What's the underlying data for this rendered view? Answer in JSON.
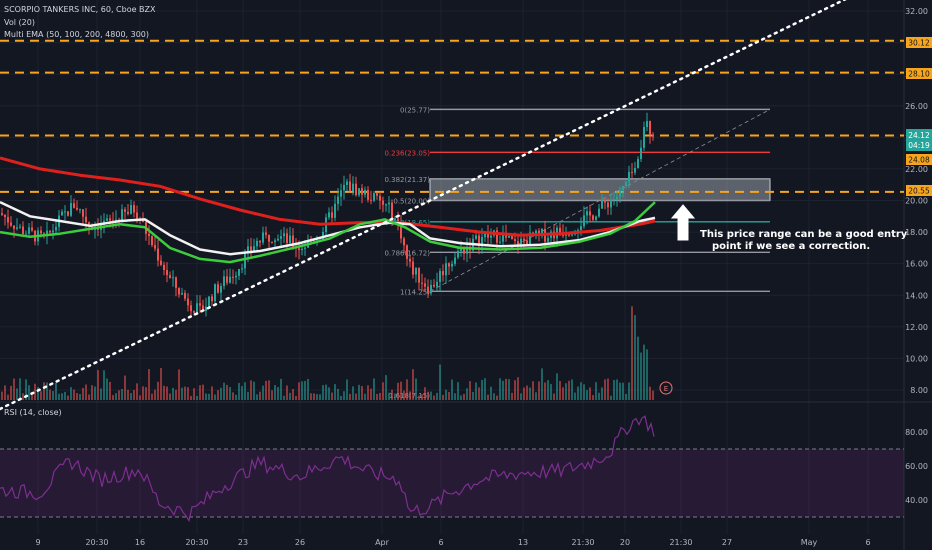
{
  "legend": {
    "line1": "SCORPIO TANKERS INC, 60, Cboe BZX",
    "line2": "Vol (20)",
    "line3": "Multi EMA (50, 100, 200, 4800, 300)",
    "rsi_label": "RSI (14, close)"
  },
  "price_tags": {
    "p3012": "30.12",
    "p2810": "28.10",
    "p2412": "24.12",
    "p0419": "04:19",
    "p2408": "24.08",
    "p2055": "20.55"
  },
  "annotation": {
    "line1": "This price range can be a good entry",
    "line2": "point if we see a correction."
  },
  "earnings_marker": "E",
  "colors": {
    "background": "#131722",
    "up": "#26a69a",
    "down": "#ef5350",
    "ema_red": "#e0201d",
    "ema_green": "#3ccd3c",
    "ema_white": "#f2f2f2",
    "orange": "#f7a51c",
    "rsi": "#7e2f8f"
  },
  "chart_data": {
    "type": "candlestick",
    "y_axis": {
      "ticks": [
        "32.00",
        "30.00",
        "28.00",
        "26.00",
        "24.00",
        "22.00",
        "20.00",
        "18.00",
        "16.00",
        "14.00",
        "12.00",
        "10.00",
        "8.00"
      ],
      "range": [
        6.9,
        33.0
      ]
    },
    "rsi_axis": {
      "ticks": [
        "80.00",
        "60.00",
        "40.00"
      ],
      "range": [
        20,
        100
      ],
      "levels": [
        70,
        30
      ]
    },
    "x_ticks": [
      "9",
      "20:30",
      "16",
      "20:30",
      "23",
      "26",
      "Apr",
      "6",
      "13",
      "21:30",
      "20",
      "21:30",
      "27",
      "May",
      "6"
    ],
    "horizontal_levels": [
      30.12,
      28.1,
      24.12,
      20.55
    ],
    "fibonacci": [
      {
        "label": "0(25.77)",
        "value": 25.77
      },
      {
        "label": "0.236(23.05)",
        "value": 23.05
      },
      {
        "label": "0.382(21.37)",
        "value": 21.37
      },
      {
        "label": "0.5(20.00)",
        "value": 20.0
      },
      {
        "label": "0.618(18.65)",
        "value": 18.65
      },
      {
        "label": "0.786(16.72)",
        "value": 16.72
      },
      {
        "label": "1(14.25)",
        "value": 14.25
      },
      {
        "label": "1.618(7.15)",
        "value": 7.15
      }
    ],
    "entry_zone": [
      20.0,
      21.37
    ],
    "trendline": [
      [
        0,
        6.8
      ],
      [
        235,
        33.0
      ]
    ],
    "last_price": 24.12
  }
}
